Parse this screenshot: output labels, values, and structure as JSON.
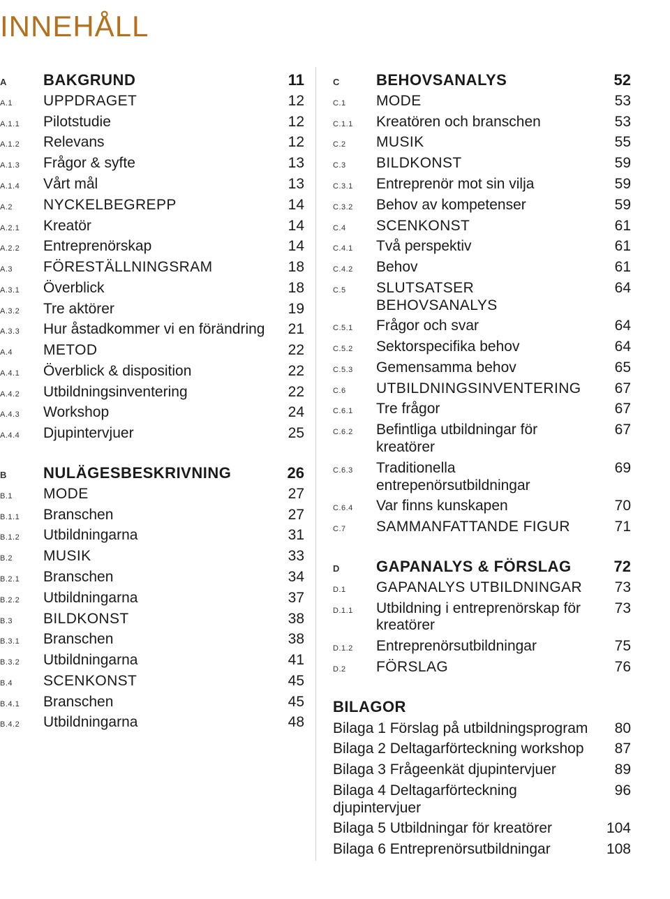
{
  "title": "INNEHÅLL",
  "colors": {
    "accent": "#b3711f",
    "text": "#1a1a1a",
    "divider": "#cfcfcf",
    "background": "#ffffff"
  },
  "left": [
    {
      "type": "top",
      "num": "A",
      "label": "BAKGRUND",
      "page": "11"
    },
    {
      "type": "sec",
      "num": "A.1",
      "label": "UPPDRAGET",
      "page": "12"
    },
    {
      "type": "sub",
      "num": "A.1.1",
      "label": "Pilotstudie",
      "page": "12"
    },
    {
      "type": "sub",
      "num": "A.1.2",
      "label": "Relevans",
      "page": "12"
    },
    {
      "type": "sub",
      "num": "A.1.3",
      "label": "Frågor & syfte",
      "page": "13"
    },
    {
      "type": "sub",
      "num": "A.1.4",
      "label": "Vårt mål",
      "page": "13"
    },
    {
      "type": "sec",
      "num": "A.2",
      "label": "NYCKELBEGREPP",
      "page": "14"
    },
    {
      "type": "sub",
      "num": "A.2.1",
      "label": "Kreatör",
      "page": "14"
    },
    {
      "type": "sub",
      "num": "A.2.2",
      "label": "Entreprenörskap",
      "page": "14"
    },
    {
      "type": "sec",
      "num": "A.3",
      "label": "FÖRESTÄLLNINGSRAM",
      "page": "18"
    },
    {
      "type": "sub",
      "num": "A.3.1",
      "label": "Överblick",
      "page": "18"
    },
    {
      "type": "sub",
      "num": "A.3.2",
      "label": "Tre aktörer",
      "page": "19"
    },
    {
      "type": "sub",
      "num": "A.3.3",
      "label": "Hur åstadkommer vi en förändring",
      "page": "21"
    },
    {
      "type": "sec",
      "num": "A.4",
      "label": "METOD",
      "page": "22"
    },
    {
      "type": "sub",
      "num": "A.4.1",
      "label": "Överblick & disposition",
      "page": "22"
    },
    {
      "type": "sub",
      "num": "A.4.2",
      "label": "Utbildningsinventering",
      "page": "22"
    },
    {
      "type": "sub",
      "num": "A.4.3",
      "label": "Workshop",
      "page": "24"
    },
    {
      "type": "sub",
      "num": "A.4.4",
      "label": "Djupintervjuer",
      "page": "25"
    },
    {
      "type": "gap"
    },
    {
      "type": "top",
      "num": "B",
      "label": "NULÄGESBESKRIVNING",
      "page": "26"
    },
    {
      "type": "sec",
      "num": "B.1",
      "label": "MODE",
      "page": "27"
    },
    {
      "type": "sub",
      "num": "B.1.1",
      "label": "Branschen",
      "page": "27"
    },
    {
      "type": "sub",
      "num": "B.1.2",
      "label": "Utbildningarna",
      "page": "31"
    },
    {
      "type": "sec",
      "num": "B.2",
      "label": "MUSIK",
      "page": "33"
    },
    {
      "type": "sub",
      "num": "B.2.1",
      "label": "Branschen",
      "page": "34"
    },
    {
      "type": "sub",
      "num": "B.2.2",
      "label": "Utbildningarna",
      "page": "37"
    },
    {
      "type": "sec",
      "num": "B.3",
      "label": "BILDKONST",
      "page": "38"
    },
    {
      "type": "sub",
      "num": "B.3.1",
      "label": "Branschen",
      "page": "38"
    },
    {
      "type": "sub",
      "num": "B.3.2",
      "label": "Utbildningarna",
      "page": "41"
    },
    {
      "type": "sec",
      "num": "B.4",
      "label": "SCENKONST",
      "page": "45"
    },
    {
      "type": "sub",
      "num": "B.4.1",
      "label": "Branschen",
      "page": "45"
    },
    {
      "type": "sub",
      "num": "B.4.2",
      "label": "Utbildningarna",
      "page": "48"
    }
  ],
  "right": [
    {
      "type": "top",
      "num": "C",
      "label": "BEHOVSANALYS",
      "page": "52"
    },
    {
      "type": "sec",
      "num": "C.1",
      "label": "MODE",
      "page": "53"
    },
    {
      "type": "sub",
      "num": "C.1.1",
      "label": "Kreatören och branschen",
      "page": "53"
    },
    {
      "type": "sec",
      "num": "C.2",
      "label": "MUSIK",
      "page": "55"
    },
    {
      "type": "sec",
      "num": "C.3",
      "label": "BILDKONST",
      "page": "59"
    },
    {
      "type": "sub",
      "num": "C.3.1",
      "label": "Entreprenör mot sin vilja",
      "page": "59"
    },
    {
      "type": "sub",
      "num": "C.3.2",
      "label": "Behov av kompetenser",
      "page": "59"
    },
    {
      "type": "sec",
      "num": "C.4",
      "label": "SCENKONST",
      "page": "61"
    },
    {
      "type": "sub",
      "num": "C.4.1",
      "label": "Två perspektiv",
      "page": "61"
    },
    {
      "type": "sub",
      "num": "C.4.2",
      "label": "Behov",
      "page": "61"
    },
    {
      "type": "sec",
      "num": "C.5",
      "label": "SLUTSATSER BEHOVSANALYS",
      "page": "64"
    },
    {
      "type": "sub",
      "num": "C.5.1",
      "label": "Frågor och svar",
      "page": "64"
    },
    {
      "type": "sub",
      "num": "C.5.2",
      "label": "Sektorspecifika behov",
      "page": "64"
    },
    {
      "type": "sub",
      "num": "C.5.3",
      "label": "Gemensamma behov",
      "page": "65"
    },
    {
      "type": "sec",
      "num": "C.6",
      "label": "UTBILDNINGSINVENTERING",
      "page": "67"
    },
    {
      "type": "sub",
      "num": "C.6.1",
      "label": "Tre frågor",
      "page": "67"
    },
    {
      "type": "sub",
      "num": "C.6.2",
      "label": "Befintliga utbildningar för kreatörer",
      "page": "67"
    },
    {
      "type": "sub",
      "num": "C.6.3",
      "label": "Traditionella entrepenörsutbildningar",
      "page": "69"
    },
    {
      "type": "sub",
      "num": "C.6.4",
      "label": "Var finns kunskapen",
      "page": "70"
    },
    {
      "type": "sec",
      "num": "C.7",
      "label": "SAMMANFATTANDE FIGUR",
      "page": "71"
    },
    {
      "type": "gap"
    },
    {
      "type": "top",
      "num": "D",
      "label": "GAPANALYS & FÖRSLAG",
      "page": "72"
    },
    {
      "type": "sec",
      "num": "D.1",
      "label": "GAPANALYS UTBILDNINGAR",
      "page": "73"
    },
    {
      "type": "sub",
      "num": "D.1.1",
      "label": "Utbildning i entreprenörskap för kreatörer",
      "page": "73"
    },
    {
      "type": "sub",
      "num": "D.1.2",
      "label": "Entreprenörsutbildningar",
      "page": "75"
    },
    {
      "type": "sec",
      "num": "D.2",
      "label": "FÖRSLAG",
      "page": "76"
    }
  ],
  "appendix": {
    "heading": "BILAGOR",
    "items": [
      {
        "label": "Bilaga 1 Förslag på utbildningsprogram",
        "page": "80"
      },
      {
        "label": "Bilaga 2 Deltagarförteckning workshop",
        "page": "87"
      },
      {
        "label": "Bilaga 3 Frågeenkät djupintervjuer",
        "page": "89"
      },
      {
        "label": "Bilaga 4 Deltagarförteckning djupintervjuer",
        "page": "96"
      },
      {
        "label": "Bilaga 5 Utbildningar för kreatörer",
        "page": "104"
      },
      {
        "label": "Bilaga 6 Entreprenörsutbildningar",
        "page": "108"
      }
    ]
  }
}
